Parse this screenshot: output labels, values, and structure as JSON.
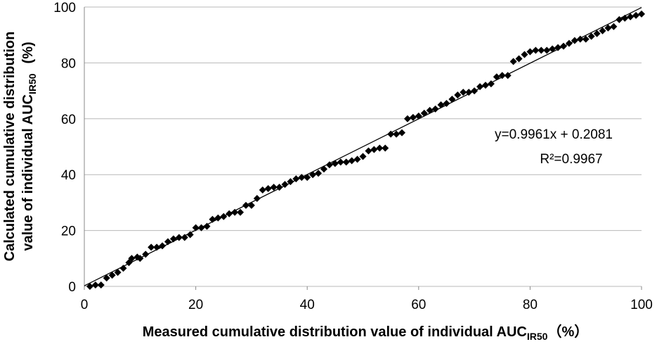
{
  "chart_data": {
    "type": "scatter",
    "x_label": {
      "text": "Measured cumulative distribution value of individual AUC",
      "subscript": "IR50",
      "unit": "（%）"
    },
    "y_label": {
      "line1": "Calculated cumulative distribution",
      "line2": "value of individual AUC",
      "subscript": "IR50",
      "unit": "(%)"
    },
    "annotations": [
      "y=0.9961x + 0.2081",
      "R²=0.9967"
    ],
    "trendline": {
      "slope": 0.9961,
      "intercept": 0.2081
    },
    "xlim": [
      0,
      100
    ],
    "ylim": [
      0,
      100
    ],
    "xticks": [
      0,
      20,
      40,
      60,
      80,
      100
    ],
    "yticks": [
      0,
      20,
      40,
      60,
      80,
      100
    ],
    "grid": true,
    "color": "#000000",
    "x": [
      1,
      2,
      3,
      4,
      5,
      6,
      7,
      8,
      8.5,
      9.5,
      10,
      11,
      12,
      13,
      14,
      15,
      16,
      17,
      18,
      19,
      20,
      21,
      22,
      23,
      24,
      25,
      26,
      27,
      28,
      29,
      30,
      31,
      32,
      33,
      34,
      35,
      36,
      37,
      38,
      39,
      40,
      41,
      42,
      43,
      44,
      45,
      46,
      47,
      48,
      49,
      50,
      51,
      52,
      53,
      54,
      55,
      56,
      57,
      58,
      59,
      60,
      61,
      62,
      63,
      64,
      65,
      66,
      67,
      68,
      69,
      70,
      71,
      72,
      73,
      74,
      75,
      76,
      77,
      78,
      79,
      80,
      81,
      82,
      83,
      84,
      85,
      86,
      87,
      88,
      89,
      90,
      91,
      92,
      93,
      94,
      95,
      96,
      97,
      98,
      99,
      100
    ],
    "values": [
      0,
      0.5,
      0.5,
      3,
      4,
      5,
      6.5,
      8.5,
      10,
      10.5,
      10,
      11.5,
      14,
      14,
      14.5,
      16,
      17,
      17.5,
      17.5,
      18.5,
      21,
      21,
      21.5,
      24,
      24.5,
      25,
      26,
      26.5,
      26.5,
      29,
      29,
      31.5,
      34.5,
      35,
      35.5,
      35.5,
      36.5,
      37.5,
      38.5,
      39,
      39,
      40,
      40.5,
      42,
      43.5,
      44,
      44.5,
      44.5,
      45,
      45.5,
      46.5,
      48.5,
      49,
      49.5,
      49.5,
      54.5,
      54.5,
      55,
      60,
      60.5,
      61,
      62,
      63,
      63.5,
      65,
      65.5,
      67,
      68.5,
      69.5,
      69.5,
      70,
      71.5,
      72,
      72.5,
      75,
      75.5,
      75.5,
      80.5,
      81.5,
      83,
      84,
      84.5,
      84.5,
      84.5,
      85,
      85.5,
      86,
      87,
      88,
      88.5,
      88.5,
      89.5,
      90.5,
      91.5,
      92.5,
      93,
      95.5,
      96,
      96.5,
      97,
      97.5
    ]
  }
}
